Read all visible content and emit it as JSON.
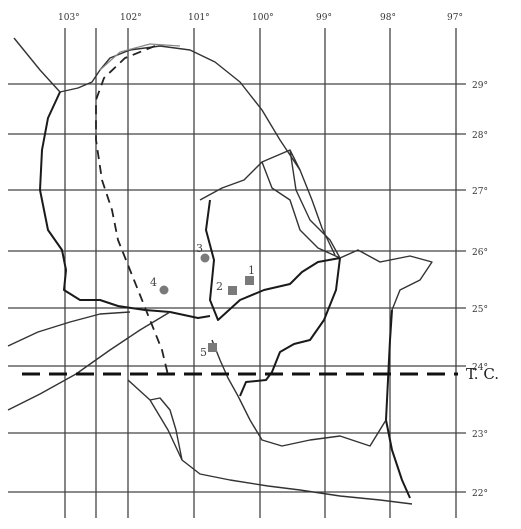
{
  "longitude_labels": [
    "103°",
    "102°",
    "101°",
    "100°",
    "99°",
    "98°",
    "97°"
  ],
  "latitude_labels": [
    "29°",
    "28°",
    "27°",
    "26°",
    "25°",
    "24°",
    "23°",
    "22°"
  ],
  "tropic_label": "T. C.",
  "sites": [
    {
      "label": "1",
      "shape": "square"
    },
    {
      "label": "2",
      "shape": "square"
    },
    {
      "label": "3",
      "shape": "circle"
    },
    {
      "label": "4",
      "shape": "circle"
    },
    {
      "label": "5",
      "shape": "square"
    }
  ],
  "colors": {
    "line": "#1a1a1a",
    "marker": "#7a7a7a"
  }
}
